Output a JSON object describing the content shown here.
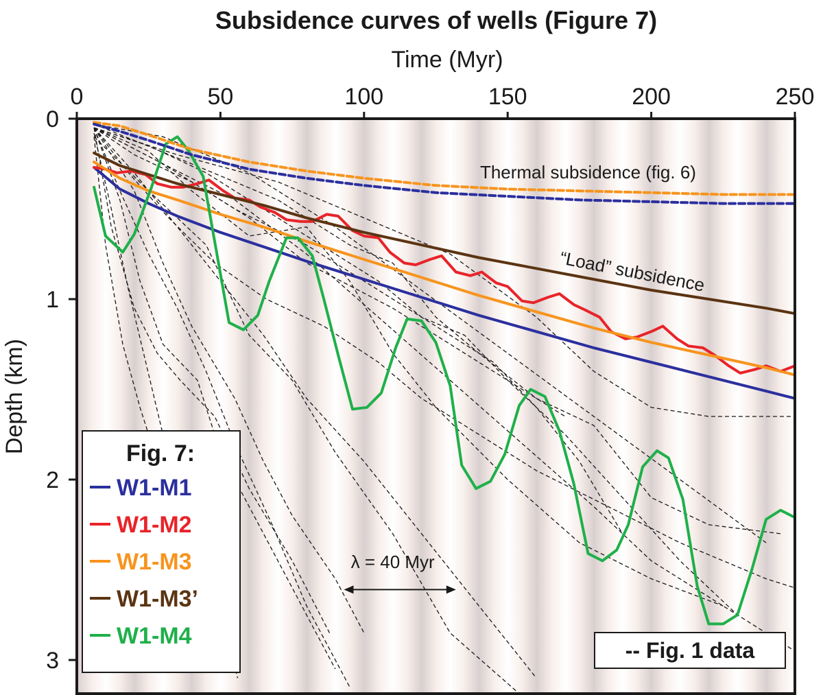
{
  "chart_data": {
    "type": "line",
    "title": "Subsidence curves of wells (Figure 7)",
    "xlabel": "Time (Myr)",
    "ylabel": "Depth (km)",
    "xlim": [
      0,
      250
    ],
    "ylim": [
      0,
      3.2
    ],
    "xticks": [
      0,
      50,
      100,
      150,
      200,
      250
    ],
    "yticks": [
      0,
      1,
      2,
      3
    ],
    "background_period_myr": 20,
    "series": [
      {
        "name": "W1-M1",
        "color": "#2b2f9e",
        "style": "solid",
        "width": 4,
        "x": [
          6,
          15,
          25,
          35,
          50,
          65,
          80,
          100,
          120,
          140,
          160,
          180,
          200,
          220,
          240,
          250
        ],
        "y": [
          0.27,
          0.39,
          0.47,
          0.54,
          0.63,
          0.71,
          0.79,
          0.89,
          0.99,
          1.09,
          1.18,
          1.27,
          1.35,
          1.43,
          1.51,
          1.55
        ]
      },
      {
        "name": "W1-M2",
        "color": "#e8242a",
        "style": "solid",
        "width": 4,
        "x": [
          6,
          10,
          14,
          19,
          24,
          28,
          33,
          37,
          42,
          46,
          51,
          55,
          60,
          64,
          69,
          73,
          78,
          82,
          87,
          91,
          96,
          100,
          105,
          109,
          114,
          118,
          123,
          127,
          132,
          137,
          141,
          146,
          150,
          155,
          159,
          164,
          168,
          173,
          177,
          182,
          186,
          191,
          195,
          200,
          204,
          209,
          213,
          218,
          222,
          227,
          231,
          236,
          240,
          245,
          250
        ],
        "y": [
          0.27,
          0.28,
          0.3,
          0.29,
          0.31,
          0.36,
          0.38,
          0.38,
          0.36,
          0.34,
          0.4,
          0.44,
          0.45,
          0.49,
          0.52,
          0.56,
          0.57,
          0.57,
          0.53,
          0.54,
          0.62,
          0.65,
          0.66,
          0.74,
          0.8,
          0.81,
          0.78,
          0.76,
          0.85,
          0.87,
          0.85,
          0.91,
          0.93,
          1.01,
          1.02,
          0.99,
          0.97,
          1.03,
          1.06,
          1.1,
          1.18,
          1.22,
          1.21,
          1.18,
          1.15,
          1.22,
          1.26,
          1.27,
          1.31,
          1.37,
          1.41,
          1.39,
          1.37,
          1.4,
          1.37
        ]
      },
      {
        "name": "W1-M3",
        "color": "#f7941d",
        "style": "solid",
        "width": 4,
        "x": [
          6,
          15,
          25,
          35,
          50,
          65,
          80,
          100,
          120,
          140,
          160,
          180,
          200,
          220,
          240,
          250
        ],
        "y": [
          0.24,
          0.33,
          0.4,
          0.45,
          0.53,
          0.6,
          0.68,
          0.78,
          0.88,
          0.98,
          1.07,
          1.16,
          1.24,
          1.31,
          1.38,
          1.42
        ]
      },
      {
        "name": "W1-M3’",
        "color": "#5b3412",
        "style": "solid",
        "width": 4,
        "x": [
          6,
          15,
          25,
          35,
          50,
          65,
          80,
          100,
          120,
          140,
          160,
          180,
          200,
          220,
          240,
          250
        ],
        "y": [
          0.19,
          0.26,
          0.31,
          0.36,
          0.42,
          0.48,
          0.55,
          0.63,
          0.7,
          0.77,
          0.83,
          0.89,
          0.95,
          1.0,
          1.05,
          1.08
        ]
      },
      {
        "name": "W1-M4",
        "color": "#1fb04a",
        "style": "solid",
        "width": 4,
        "x": [
          6,
          10,
          16,
          20,
          26,
          31,
          35,
          39,
          44,
          48,
          53,
          58,
          63,
          67,
          73,
          77,
          82,
          86,
          91,
          96,
          101,
          106,
          111,
          115,
          120,
          125,
          130,
          134,
          139,
          144,
          149,
          154,
          158,
          163,
          168,
          173,
          178,
          183,
          188,
          192,
          197,
          202,
          206,
          211,
          216,
          220,
          225,
          230,
          235,
          240,
          245,
          250
        ],
        "y": [
          0.38,
          0.65,
          0.74,
          0.64,
          0.38,
          0.14,
          0.1,
          0.18,
          0.32,
          0.68,
          1.13,
          1.17,
          1.09,
          0.9,
          0.66,
          0.66,
          0.76,
          1.0,
          1.31,
          1.61,
          1.6,
          1.52,
          1.27,
          1.11,
          1.12,
          1.24,
          1.48,
          1.92,
          2.05,
          2.01,
          1.86,
          1.59,
          1.5,
          1.54,
          1.73,
          2.02,
          2.41,
          2.45,
          2.39,
          2.25,
          1.93,
          1.84,
          1.88,
          2.11,
          2.59,
          2.8,
          2.8,
          2.75,
          2.5,
          2.22,
          2.17,
          2.21
        ]
      },
      {
        "name": "Thermal subsidence (orange)",
        "color": "#f7941d",
        "style": "dashed",
        "width": 4,
        "x": [
          6,
          15,
          25,
          40,
          60,
          80,
          100,
          125,
          150,
          175,
          200,
          225,
          250
        ],
        "y": [
          0.02,
          0.04,
          0.09,
          0.17,
          0.24,
          0.29,
          0.33,
          0.37,
          0.39,
          0.4,
          0.41,
          0.42,
          0.42
        ]
      },
      {
        "name": "Thermal subsidence (blue)",
        "color": "#2b2f9e",
        "style": "dashed",
        "width": 4,
        "x": [
          6,
          15,
          25,
          40,
          60,
          80,
          100,
          125,
          150,
          175,
          200,
          225,
          250
        ],
        "y": [
          0.03,
          0.07,
          0.12,
          0.2,
          0.28,
          0.33,
          0.37,
          0.41,
          0.43,
          0.45,
          0.46,
          0.47,
          0.47
        ]
      }
    ],
    "fig1_data": [
      {
        "x": [
          6,
          12,
          18,
          24,
          30,
          38,
          46,
          55
        ],
        "y": [
          0.08,
          0.5,
          0.95,
          1.35,
          1.75,
          2.15,
          2.55,
          3.0
        ]
      },
      {
        "x": [
          6,
          15,
          25,
          35,
          45,
          55,
          68,
          80,
          95
        ],
        "y": [
          0.05,
          0.4,
          0.75,
          1.05,
          1.4,
          1.8,
          2.25,
          2.7,
          3.15
        ]
      },
      {
        "x": [
          6,
          20,
          35,
          50,
          65,
          80,
          100,
          120,
          140,
          160
        ],
        "y": [
          0.05,
          0.3,
          0.6,
          0.9,
          1.2,
          1.55,
          1.9,
          2.3,
          2.7,
          3.1
        ]
      },
      {
        "x": [
          6,
          25,
          45,
          60,
          75,
          90,
          110,
          130,
          155
        ],
        "y": [
          0.1,
          0.4,
          0.7,
          1.2,
          1.45,
          1.85,
          2.3,
          2.85,
          3.2
        ]
      },
      {
        "x": [
          6,
          20,
          40,
          60,
          80,
          110,
          140,
          170
        ],
        "y": [
          0.05,
          0.2,
          0.35,
          0.55,
          0.8,
          1.05,
          1.35,
          1.65
        ]
      },
      {
        "x": [
          6,
          30,
          55,
          80,
          105,
          130,
          155,
          180,
          200,
          230
        ],
        "y": [
          0.05,
          0.25,
          0.45,
          0.75,
          1.1,
          1.45,
          1.8,
          2.15,
          2.45,
          2.75
        ]
      },
      {
        "x": [
          6,
          25,
          40,
          60,
          80,
          95,
          110,
          125,
          150,
          175,
          200,
          225
        ],
        "y": [
          0.05,
          0.18,
          0.4,
          0.65,
          0.6,
          0.9,
          1.3,
          1.6,
          2.0,
          2.35,
          2.55,
          2.7
        ]
      },
      {
        "x": [
          6,
          30,
          60,
          90,
          120,
          150,
          180,
          210,
          240
        ],
        "y": [
          0.03,
          0.1,
          0.3,
          0.6,
          0.95,
          1.3,
          1.65,
          2.0,
          2.35
        ]
      },
      {
        "x": [
          6,
          35,
          70,
          100,
          130,
          160,
          180,
          200,
          220,
          250
        ],
        "y": [
          0.05,
          0.2,
          0.35,
          0.55,
          0.75,
          1.1,
          1.4,
          1.6,
          1.65,
          1.65
        ]
      },
      {
        "x": [
          6,
          40,
          70,
          95,
          110,
          125,
          140,
          160,
          180,
          200,
          220,
          245
        ],
        "y": [
          0.03,
          0.25,
          0.45,
          0.7,
          0.8,
          1.1,
          1.3,
          1.55,
          1.7,
          2.1,
          2.25,
          2.3
        ]
      },
      {
        "x": [
          6,
          20,
          30,
          40,
          55,
          65,
          75,
          90,
          100
        ],
        "y": [
          0.05,
          0.4,
          0.8,
          1.15,
          1.55,
          1.9,
          2.2,
          2.55,
          2.85
        ]
      },
      {
        "x": [
          6,
          15,
          22,
          30,
          42,
          50,
          60,
          70,
          80,
          90
        ],
        "y": [
          0.05,
          0.45,
          0.9,
          1.25,
          1.45,
          1.85,
          2.15,
          2.45,
          2.75,
          3.05
        ]
      },
      {
        "x": [
          6,
          12,
          20,
          28,
          36,
          48,
          60,
          75,
          88
        ],
        "y": [
          0.05,
          0.6,
          1.05,
          1.3,
          1.45,
          1.65,
          2.05,
          2.45,
          2.85
        ]
      },
      {
        "x": [
          6,
          10,
          16,
          22,
          28,
          34,
          40,
          48,
          56
        ],
        "y": [
          0.1,
          0.7,
          1.25,
          1.6,
          1.9,
          2.05,
          2.25,
          2.6,
          3.1
        ]
      },
      {
        "x": [
          6,
          18,
          32,
          48,
          66,
          86,
          105,
          120,
          140,
          160,
          185,
          210,
          240,
          250
        ],
        "y": [
          0.05,
          0.3,
          0.55,
          0.8,
          1.0,
          1.15,
          1.35,
          1.55,
          1.75,
          1.95,
          2.15,
          2.35,
          2.55,
          2.6
        ]
      },
      {
        "x": [
          6,
          25,
          45,
          65,
          85,
          105,
          120,
          135,
          150,
          170,
          190,
          210,
          230,
          250
        ],
        "y": [
          0.05,
          0.15,
          0.3,
          0.5,
          0.7,
          0.9,
          1.1,
          1.2,
          1.45,
          1.75,
          2.1,
          2.45,
          2.75,
          2.95
        ]
      },
      {
        "x": [
          6,
          30,
          55,
          80,
          100,
          120,
          145,
          160,
          175,
          190
        ],
        "y": [
          0.05,
          0.25,
          0.5,
          0.7,
          0.9,
          1.1,
          1.35,
          1.6,
          1.9,
          2.3
        ]
      }
    ],
    "annotations": [
      {
        "text": "Thermal subsidence (fig. 6)",
        "x": 178,
        "y": 0.33
      },
      {
        "text": "“Load” subsidence",
        "x": 193,
        "y": 0.88
      },
      {
        "text": "λ = 40 Myr",
        "x": 110,
        "y": 2.49
      }
    ],
    "arrow": {
      "x_start": 93,
      "x_end": 132,
      "y": 2.61
    },
    "legend": {
      "title": "Fig. 7:",
      "position": "bottom-left",
      "entries": [
        "W1-M1",
        "W1-M2",
        "W1-M3",
        "W1-M3’",
        "W1-M4"
      ]
    },
    "data_box": {
      "label": "-- Fig. 1 data",
      "position": "bottom-right"
    }
  }
}
